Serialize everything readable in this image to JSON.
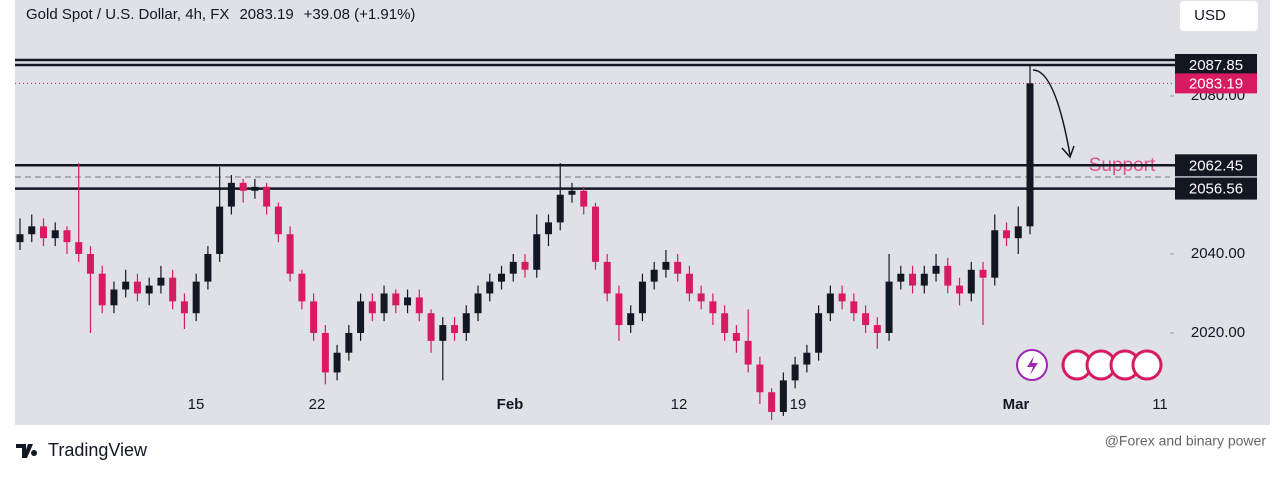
{
  "chart_data": {
    "type": "candlestick",
    "title": "Gold Spot / U.S. Dollar, 4h, FX",
    "current_price": 2083.19,
    "change_text": "+39.08 (+1.91%)",
    "currency": "USD",
    "annotation": "Support",
    "up_color": "#131722",
    "down_color": "#d81b60",
    "levels": [
      2087.85,
      2062.45,
      2056.56
    ],
    "categories": [
      "15",
      "22",
      "Feb",
      "12",
      "19",
      "Mar",
      "11"
    ],
    "ylim": [
      1996.7,
      2104.3
    ],
    "yticks": [
      {
        "value": 2020,
        "label": "2020.00"
      },
      {
        "value": 2040,
        "label": "2040.00"
      },
      {
        "value": 2080,
        "label": "2080.00"
      }
    ],
    "open": [
      2043,
      2045,
      2047,
      2044,
      2046,
      2043,
      2040,
      2035,
      2027,
      2031,
      2033,
      2030,
      2032,
      2034,
      2028,
      2025,
      2033,
      2040,
      2052,
      2058,
      2056,
      2057,
      2052,
      2045,
      2035,
      2028,
      2020,
      2010,
      2015,
      2020,
      2028,
      2025,
      2030,
      2027,
      2029,
      2025,
      2018,
      2022,
      2020,
      2025,
      2030,
      2033,
      2035,
      2038,
      2036,
      2045,
      2048,
      2055,
      2056,
      2052,
      2038,
      2030,
      2022,
      2025,
      2033,
      2036,
      2038,
      2035,
      2030,
      2028,
      2025,
      2020,
      2018,
      2012,
      2005,
      2000,
      2008,
      2012,
      2015,
      2025,
      2030,
      2028,
      2025,
      2022,
      2020,
      2033,
      2035,
      2032,
      2035,
      2037,
      2032,
      2030,
      2036,
      2034,
      2046,
      2044,
      2047
    ],
    "high": [
      2049,
      2050,
      2049,
      2048,
      2047,
      2063,
      2042,
      2037,
      2033,
      2036,
      2035,
      2034,
      2037,
      2036,
      2030,
      2035,
      2042,
      2062,
      2060,
      2059,
      2059,
      2058,
      2053,
      2047,
      2036,
      2030,
      2022,
      2017,
      2022,
      2030,
      2030,
      2032,
      2031,
      2031,
      2031,
      2026,
      2024,
      2024,
      2027,
      2032,
      2035,
      2037,
      2040,
      2040,
      2050,
      2050,
      2063,
      2058,
      2057,
      2053,
      2040,
      2032,
      2027,
      2035,
      2038,
      2041,
      2040,
      2037,
      2032,
      2030,
      2027,
      2022,
      2026,
      2014,
      2006,
      2010,
      2014,
      2017,
      2027,
      2032,
      2032,
      2030,
      2027,
      2024,
      2040,
      2037,
      2037,
      2037,
      2040,
      2039,
      2034,
      2038,
      2038,
      2050,
      2048,
      2052,
      2087.85
    ],
    "low": [
      2041,
      2043,
      2042,
      2042,
      2040,
      2038,
      2020,
      2025,
      2025,
      2029,
      2028,
      2027,
      2030,
      2026,
      2021,
      2023,
      2031,
      2038,
      2050,
      2053,
      2054,
      2050,
      2043,
      2033,
      2026,
      2018,
      2007,
      2008,
      2013,
      2018,
      2023,
      2023,
      2025,
      2025,
      2023,
      2015,
      2008,
      2018,
      2018,
      2023,
      2028,
      2031,
      2033,
      2034,
      2034,
      2042,
      2046,
      2053,
      2050,
      2036,
      2028,
      2018,
      2020,
      2023,
      2031,
      2034,
      2033,
      2028,
      2026,
      2022,
      2018,
      2015,
      2010,
      2002,
      1998,
      1999,
      2006,
      2010,
      2013,
      2023,
      2026,
      2023,
      2020,
      2016,
      2018,
      2031,
      2030,
      2030,
      2033,
      2030,
      2027,
      2028,
      2022,
      2032,
      2042,
      2040,
      2045
    ],
    "close": [
      2045,
      2047,
      2044,
      2046,
      2043,
      2040,
      2035,
      2027,
      2031,
      2033,
      2030,
      2032,
      2034,
      2028,
      2025,
      2033,
      2040,
      2052,
      2058,
      2056,
      2057,
      2052,
      2045,
      2035,
      2028,
      2020,
      2010,
      2015,
      2020,
      2028,
      2025,
      2030,
      2027,
      2029,
      2025,
      2018,
      2022,
      2020,
      2025,
      2030,
      2033,
      2035,
      2038,
      2036,
      2045,
      2048,
      2055,
      2056,
      2052,
      2038,
      2030,
      2022,
      2025,
      2033,
      2036,
      2038,
      2035,
      2030,
      2028,
      2025,
      2020,
      2018,
      2012,
      2005,
      2000,
      2008,
      2012,
      2015,
      2025,
      2030,
      2028,
      2025,
      2022,
      2020,
      2033,
      2035,
      2032,
      2035,
      2037,
      2032,
      2030,
      2036,
      2034,
      2046,
      2044,
      2047,
      2083.19
    ]
  },
  "branding": "TradingView",
  "watermark": "@Forex and binary power"
}
